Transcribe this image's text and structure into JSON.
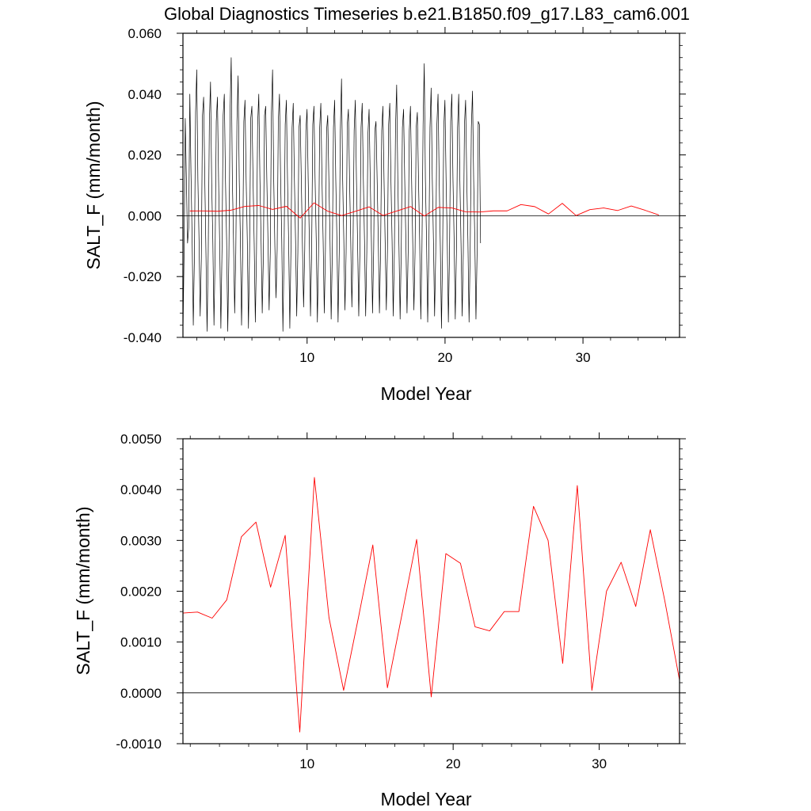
{
  "figure": {
    "title": "Global Diagnostics Timeseries b.e21.B1850.f09_g17.L83_cam6.001"
  },
  "chart_data": [
    {
      "type": "line",
      "xlabel": "Model Year",
      "ylabel": "SALT_F (mm/month)",
      "xlim": [
        1,
        37
      ],
      "ylim": [
        -0.04,
        0.06
      ],
      "xticks": [
        10,
        20,
        30
      ],
      "xtick_labels": [
        "10",
        "20",
        "30"
      ],
      "yticks": [
        -0.04,
        -0.02,
        0,
        0.02,
        0.04,
        0.06
      ],
      "ytick_labels": [
        "-0.040",
        "-0.020",
        "0.000",
        "0.020",
        "0.040",
        "0.060"
      ],
      "zero_line": true,
      "series": [
        {
          "color": "#000000",
          "resolution": "monthly",
          "x_start": 1.0,
          "x_step": 0.0833,
          "values": [
            -0.039,
            -0.012,
            0.032,
            0.012,
            -0.009,
            -0.004,
            0.04,
            0.014,
            -0.008,
            -0.036,
            -0.013,
            0.034,
            0.048,
            0.012,
            -0.008,
            -0.033,
            -0.014,
            0.033,
            0.039,
            0.012,
            -0.012,
            -0.038,
            -0.012,
            0.031,
            0.044,
            0.011,
            -0.008,
            -0.036,
            -0.012,
            0.031,
            0.039,
            0.012,
            -0.01,
            -0.037,
            -0.011,
            0.033,
            0.04,
            0.012,
            -0.008,
            -0.038,
            -0.013,
            0.034,
            0.052,
            0.012,
            -0.008,
            -0.032,
            -0.012,
            0.031,
            0.046,
            0.012,
            -0.008,
            -0.036,
            -0.012,
            0.031,
            0.038,
            0.012,
            -0.008,
            -0.037,
            -0.011,
            0.032,
            0.036,
            0.012,
            -0.009,
            -0.035,
            -0.012,
            0.03,
            0.04,
            0.012,
            -0.008,
            -0.032,
            -0.013,
            0.033,
            0.036,
            0.012,
            -0.008,
            -0.031,
            -0.012,
            0.034,
            0.048,
            0.012,
            -0.01,
            -0.027,
            -0.011,
            0.031,
            0.04,
            0.012,
            -0.008,
            -0.038,
            -0.012,
            0.03,
            0.038,
            0.012,
            -0.009,
            -0.037,
            -0.011,
            0.029,
            0.037,
            0.012,
            -0.008,
            -0.033,
            -0.012,
            0.029,
            0.033,
            0.012,
            -0.01,
            -0.03,
            -0.011,
            0.028,
            0.035,
            0.012,
            -0.008,
            -0.033,
            -0.012,
            0.03,
            0.036,
            0.012,
            -0.008,
            -0.035,
            -0.012,
            0.029,
            0.037,
            0.012,
            -0.008,
            -0.032,
            -0.011,
            0.028,
            0.033,
            0.012,
            -0.008,
            -0.034,
            -0.012,
            0.029,
            0.038,
            0.012,
            -0.008,
            -0.035,
            -0.012,
            0.028,
            0.045,
            0.012,
            -0.008,
            -0.031,
            -0.012,
            0.03,
            0.035,
            0.012,
            -0.008,
            -0.03,
            -0.011,
            0.028,
            0.038,
            0.012,
            -0.009,
            -0.033,
            -0.012,
            0.029,
            0.037,
            0.012,
            -0.008,
            -0.033,
            -0.012,
            0.027,
            0.035,
            0.012,
            -0.008,
            -0.032,
            -0.011,
            0.028,
            0.031,
            0.012,
            -0.008,
            -0.032,
            -0.012,
            0.028,
            0.036,
            0.012,
            -0.009,
            -0.031,
            -0.011,
            0.03,
            0.037,
            0.012,
            -0.008,
            -0.033,
            -0.012,
            0.029,
            0.043,
            0.012,
            -0.01,
            -0.034,
            -0.011,
            0.029,
            0.035,
            0.012,
            -0.008,
            -0.032,
            -0.012,
            0.028,
            0.036,
            0.012,
            -0.009,
            -0.031,
            -0.012,
            0.029,
            0.034,
            0.012,
            -0.008,
            -0.034,
            -0.011,
            0.03,
            0.05,
            0.012,
            -0.008,
            -0.035,
            -0.012,
            0.029,
            0.042,
            0.012,
            -0.008,
            -0.033,
            -0.012,
            0.03,
            0.04,
            0.012,
            -0.01,
            -0.037,
            -0.011,
            0.029,
            0.038,
            0.012,
            -0.008,
            -0.035,
            -0.012,
            0.031,
            0.04,
            0.012,
            -0.008,
            -0.034,
            -0.012,
            0.029,
            0.04,
            0.012,
            -0.009,
            -0.033,
            -0.012,
            0.03,
            0.038,
            0.012,
            -0.008,
            -0.035,
            -0.011,
            0.029,
            0.041,
            0.012,
            -0.008,
            -0.034,
            -0.012,
            0.031,
            0.03,
            -0.009
          ]
        },
        {
          "color": "#ff0000",
          "resolution": "annual",
          "x": [
            1.5,
            2.5,
            3.5,
            4.5,
            5.5,
            6.5,
            7.5,
            8.5,
            9.5,
            10.5,
            11.5,
            12.5,
            13.5,
            14.5,
            15.5,
            16.5,
            17.5,
            18.5,
            19.5,
            20.5,
            21.5,
            22.5,
            23.5,
            24.5,
            25.5,
            26.5,
            27.5,
            28.5,
            29.5,
            30.5,
            31.5,
            32.5,
            33.5,
            34.5,
            35.5
          ],
          "values": [
            0.00157,
            0.00159,
            0.00147,
            0.00183,
            0.00307,
            0.00336,
            0.00208,
            0.0031,
            -0.00077,
            0.00424,
            0.00148,
            5e-05,
            0.00146,
            0.00291,
            0.0001,
            0.00155,
            0.00302,
            -8e-05,
            0.00274,
            0.00255,
            0.0013,
            0.00122,
            0.0016,
            0.0016,
            0.00367,
            0.003,
            0.00058,
            0.00408,
            5e-05,
            0.002,
            0.00257,
            0.0017,
            0.00321,
            0.0018,
            0.00025
          ]
        }
      ]
    },
    {
      "type": "line",
      "xlabel": "Model Year",
      "ylabel": "SALT_F (mm/month)",
      "xlim": [
        1.5,
        35.5
      ],
      "ylim": [
        -0.001,
        0.005
      ],
      "xticks": [
        10,
        20,
        30
      ],
      "xtick_labels": [
        "10",
        "20",
        "30"
      ],
      "yticks": [
        -0.001,
        0,
        0.001,
        0.002,
        0.003,
        0.004,
        0.005
      ],
      "ytick_labels": [
        "-0.0010",
        "0.0000",
        "0.0010",
        "0.0020",
        "0.0030",
        "0.0040",
        "0.0050"
      ],
      "zero_line": true,
      "series": [
        {
          "color": "#ff0000",
          "resolution": "annual",
          "x": [
            1.5,
            2.5,
            3.5,
            4.5,
            5.5,
            6.5,
            7.5,
            8.5,
            9.5,
            10.5,
            11.5,
            12.5,
            13.5,
            14.5,
            15.5,
            16.5,
            17.5,
            18.5,
            19.5,
            20.5,
            21.5,
            22.5,
            23.5,
            24.5,
            25.5,
            26.5,
            27.5,
            28.5,
            29.5,
            30.5,
            31.5,
            32.5,
            33.5,
            34.5,
            35.5
          ],
          "values": [
            0.00157,
            0.00159,
            0.00147,
            0.00183,
            0.00307,
            0.00336,
            0.00208,
            0.0031,
            -0.00077,
            0.00424,
            0.00148,
            5e-05,
            0.00146,
            0.00291,
            0.0001,
            0.00155,
            0.00302,
            -8e-05,
            0.00274,
            0.00255,
            0.0013,
            0.00122,
            0.0016,
            0.0016,
            0.00367,
            0.003,
            0.00058,
            0.00408,
            5e-05,
            0.002,
            0.00257,
            0.0017,
            0.00321,
            0.0018,
            0.00025
          ]
        }
      ]
    }
  ]
}
